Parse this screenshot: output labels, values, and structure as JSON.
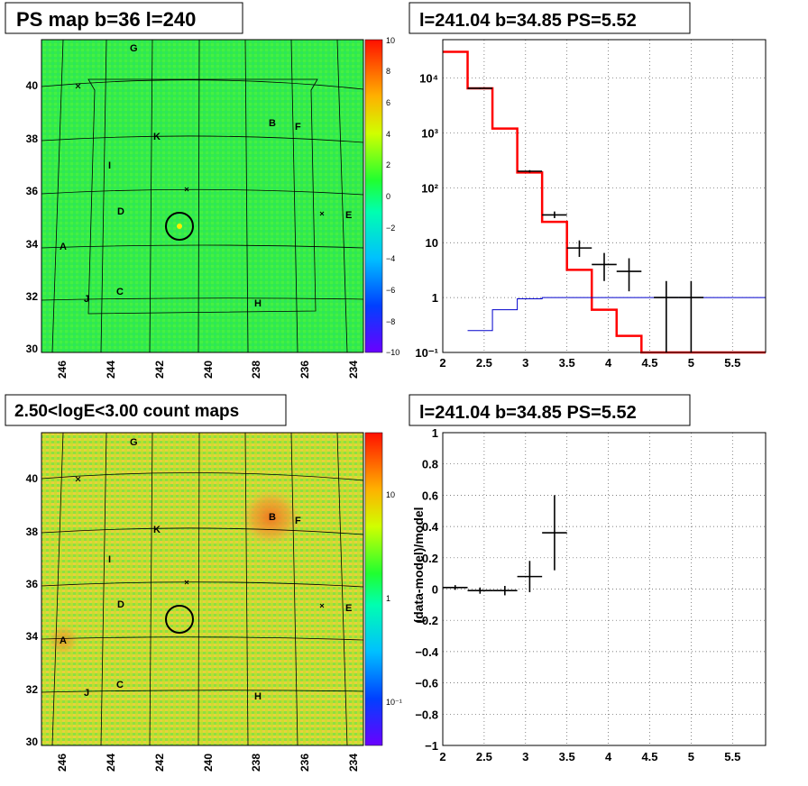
{
  "panels": {
    "tl_title": "PS map b=36 l=240",
    "tr_title": "l=241.04 b=34.85 PS=5.52",
    "bl_title": "2.50<logE<3.00 count maps",
    "br_title": "l=241.04 b=34.85 PS=5.52"
  },
  "sky_map": {
    "lon_ticks": [
      "246",
      "244",
      "242",
      "240",
      "238",
      "236",
      "234"
    ],
    "lat_ticks": [
      "30",
      "32",
      "34",
      "36",
      "38",
      "40"
    ],
    "source_labels": [
      "G",
      "B",
      "F",
      "K",
      "I",
      "D",
      "E",
      "A",
      "C",
      "J",
      "H"
    ],
    "ps_colorbar_ticks": [
      "10",
      "8",
      "6",
      "4",
      "2",
      "0",
      "−2",
      "−4",
      "−6",
      "−8",
      "−10"
    ],
    "count_colorbar_ticks": [
      "10",
      "1",
      "10⁻¹"
    ],
    "colors": {
      "ps_background": "#33ee44",
      "count_background": "#bbdd33"
    }
  },
  "chart_data": [
    {
      "type": "line",
      "panel": "spectrum",
      "title": "l=241.04 b=34.85 PS=5.52",
      "xlim": [
        2,
        5.9
      ],
      "ylog": true,
      "ylim": [
        0.1,
        50000
      ],
      "grid": true,
      "x_ticks": [
        "2",
        "2.5",
        "3",
        "3.5",
        "4",
        "4.5",
        "5",
        "5.5"
      ],
      "y_ticks": [
        "10⁻¹",
        "1",
        "10",
        "10²",
        "10³",
        "10⁴"
      ],
      "series": [
        {
          "style": "step",
          "color": "#ff0000",
          "edges": [
            2.0,
            2.3,
            2.6,
            2.9,
            3.2,
            3.5,
            3.8,
            4.1,
            4.4,
            5.9
          ],
          "values": [
            30000,
            6500,
            1200,
            190,
            24,
            3.2,
            0.6,
            0.2,
            0.1
          ]
        },
        {
          "style": "step",
          "color": "#0000cc",
          "edges": [
            2.3,
            2.6,
            2.9,
            3.2,
            5.9
          ],
          "values": [
            0.25,
            0.6,
            0.95,
            1.0
          ]
        },
        {
          "style": "errorbar",
          "color": "#000000",
          "points": [
            {
              "x": 2.45,
              "y": 6500,
              "xerr": 0.15,
              "ylo": 6300,
              "yhi": 6700
            },
            {
              "x": 3.05,
              "y": 200,
              "xerr": 0.15,
              "ylo": 190,
              "yhi": 210
            },
            {
              "x": 3.35,
              "y": 32,
              "xerr": 0.15,
              "ylo": 28,
              "yhi": 37
            },
            {
              "x": 3.65,
              "y": 8,
              "xerr": 0.15,
              "ylo": 5.5,
              "yhi": 11
            },
            {
              "x": 3.95,
              "y": 4,
              "xerr": 0.15,
              "ylo": 2,
              "yhi": 6.5
            },
            {
              "x": 4.25,
              "y": 3,
              "xerr": 0.15,
              "ylo": 1.3,
              "yhi": 5.2
            },
            {
              "x": 4.7,
              "y": 1,
              "xerr": 0.15,
              "ylo": 0.1,
              "yhi": 2
            },
            {
              "x": 5.0,
              "y": 1,
              "xerr": 0.15,
              "ylo": 0.1,
              "yhi": 2
            }
          ]
        }
      ]
    },
    {
      "type": "scatter",
      "panel": "residual",
      "title": "l=241.04 b=34.85 PS=5.52",
      "ylabel": "(data-model)/model",
      "xlim": [
        2,
        5.9
      ],
      "ylim": [
        -1,
        1
      ],
      "grid": true,
      "x_ticks": [
        "2",
        "2.5",
        "3",
        "3.5",
        "4",
        "4.5",
        "5",
        "5.5"
      ],
      "y_ticks": [
        "−1",
        "−0.8",
        "−0.6",
        "−0.4",
        "−0.2",
        "0",
        "0.2",
        "0.4",
        "0.6",
        "0.8",
        "1"
      ],
      "points": [
        {
          "x": 2.15,
          "y": 0.01,
          "xerr": 0.15,
          "yerr": 0.015
        },
        {
          "x": 2.45,
          "y": -0.01,
          "xerr": 0.15,
          "yerr": 0.02
        },
        {
          "x": 2.75,
          "y": -0.01,
          "xerr": 0.15,
          "yerr": 0.03
        },
        {
          "x": 3.05,
          "y": 0.08,
          "xerr": 0.15,
          "yerr": 0.1
        },
        {
          "x": 3.35,
          "y": 0.36,
          "xerr": 0.15,
          "yerr": 0.24
        }
      ]
    }
  ]
}
